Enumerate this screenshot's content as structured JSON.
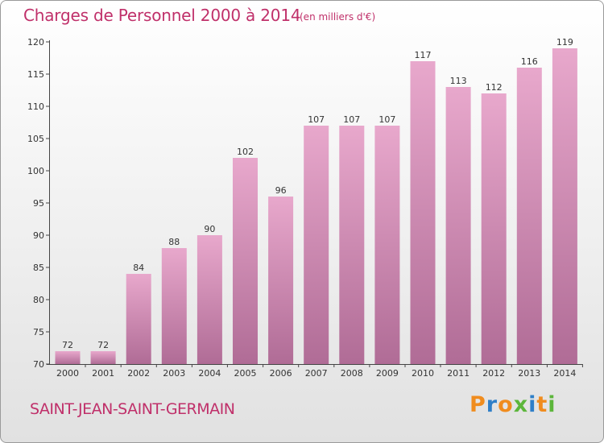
{
  "chart_data": {
    "type": "bar",
    "title": "Charges de Personnel 2000 à 2014",
    "subtitle": "(en milliers d'€)",
    "categories": [
      "2000",
      "2001",
      "2002",
      "2003",
      "2004",
      "2005",
      "2006",
      "2007",
      "2008",
      "2009",
      "2010",
      "2011",
      "2012",
      "2013",
      "2014"
    ],
    "values": [
      72,
      72,
      84,
      88,
      90,
      102,
      96,
      107,
      107,
      107,
      117,
      113,
      112,
      116,
      119
    ],
    "ylim": [
      70,
      120
    ],
    "yticks": [
      70,
      75,
      80,
      85,
      90,
      95,
      100,
      105,
      110,
      115,
      120
    ],
    "grid": false,
    "bar_color_top": "#e8a8cc",
    "bar_color_bottom": "#b06c96"
  },
  "location": "SAINT-JEAN-SAINT-GERMAIN",
  "logo": {
    "letters": [
      "P",
      "r",
      "o",
      "x",
      "i",
      "t",
      "i"
    ],
    "colors": [
      "#f08c1e",
      "#2f7fc8",
      "#f08c1e",
      "#5cb63b",
      "#2f7fc8",
      "#f08c1e",
      "#5cb63b"
    ]
  },
  "colors": {
    "title": "#c0306a",
    "axis": "#444444"
  }
}
